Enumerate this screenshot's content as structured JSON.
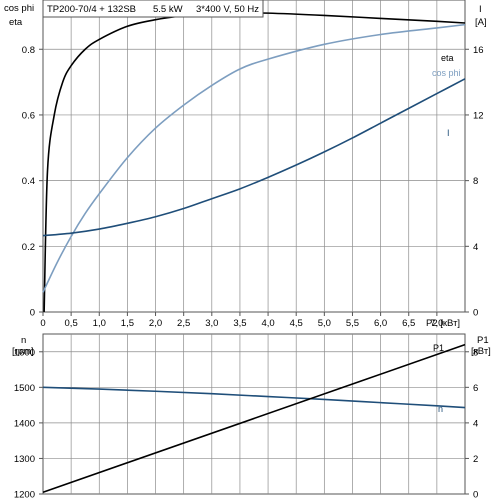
{
  "header": {
    "pump": "TP200-70/4 + 132SB",
    "power": "5.5 kW",
    "supply": "3*400 V, 50 Hz"
  },
  "top_chart": {
    "left_label_1": "cos phi",
    "left_label_2": "eta",
    "right_label_1": "I",
    "right_label_2": "[A]",
    "x_unit": "P2 [кВт]",
    "x_ticks": [
      "0",
      "0,5",
      "1,0",
      "1,5",
      "2,0",
      "2,5",
      "3,0",
      "3,5",
      "4,0",
      "4,5",
      "5,0",
      "5,5",
      "6,0",
      "6,5",
      "7,0"
    ],
    "left_ticks": [
      "0",
      "0.2",
      "0.4",
      "0.6",
      "0.8"
    ],
    "right_ticks": [
      "0",
      "4",
      "8",
      "12",
      "16"
    ],
    "series_labels": {
      "eta": "eta",
      "cosphi": "cos phi",
      "I": "I"
    }
  },
  "bottom_chart": {
    "left_label_1": "n",
    "left_label_2": "[rpm]",
    "right_label_1": "P1",
    "right_label_2": "[кВт]",
    "left_ticks": [
      "1200",
      "1300",
      "1400",
      "1500",
      "1600"
    ],
    "right_ticks": [
      "0",
      "2",
      "4",
      "6",
      "8"
    ],
    "series_labels": {
      "n": "n",
      "P1": "P1"
    }
  },
  "colors": {
    "eta": "#000000",
    "cosphi": "#7d9ec0",
    "I": "#1f4e79",
    "n": "#1f4e79",
    "P1": "#000000",
    "grid": "#8c8c8c"
  },
  "chart_data": [
    {
      "type": "line",
      "xlabel": "P2 [кВт]",
      "xlim": [
        0,
        7.5
      ],
      "ylim": [
        0,
        0.95
      ],
      "y2lim": [
        0,
        19
      ],
      "series": [
        {
          "name": "eta",
          "axis": "left",
          "x": [
            0.02,
            0.08,
            0.2,
            0.35,
            0.5,
            0.75,
            1.0,
            1.5,
            2.0,
            2.5,
            3.0,
            3.5,
            4.0,
            5.0,
            6.0,
            7.0,
            7.5
          ],
          "y": [
            0.0,
            0.43,
            0.6,
            0.7,
            0.75,
            0.8,
            0.83,
            0.87,
            0.89,
            0.902,
            0.908,
            0.91,
            0.91,
            0.903,
            0.894,
            0.885,
            0.88
          ]
        },
        {
          "name": "cos phi",
          "axis": "left",
          "x": [
            0.0,
            0.25,
            0.5,
            0.75,
            1.0,
            1.5,
            2.0,
            2.5,
            3.0,
            3.5,
            4.0,
            5.0,
            6.0,
            7.0,
            7.5
          ],
          "y": [
            0.06,
            0.15,
            0.23,
            0.3,
            0.36,
            0.47,
            0.56,
            0.63,
            0.69,
            0.74,
            0.77,
            0.815,
            0.845,
            0.865,
            0.875
          ]
        },
        {
          "name": "I",
          "axis": "right",
          "x": [
            0.0,
            0.5,
            1.0,
            1.5,
            2.0,
            2.5,
            3.0,
            3.5,
            4.0,
            4.5,
            5.0,
            5.5,
            6.0,
            6.5,
            7.0,
            7.5
          ],
          "y": [
            4.65,
            4.8,
            5.05,
            5.4,
            5.8,
            6.3,
            6.9,
            7.5,
            8.2,
            8.95,
            9.75,
            10.6,
            11.5,
            12.4,
            13.3,
            14.2
          ]
        }
      ]
    },
    {
      "type": "line",
      "xlabel": "P2 [кВт]",
      "xlim": [
        0,
        7.5
      ],
      "ylim": [
        1200,
        1650
      ],
      "y2lim": [
        0,
        9
      ],
      "series": [
        {
          "name": "n",
          "axis": "left",
          "x": [
            0.0,
            1.0,
            2.0,
            3.0,
            4.0,
            5.0,
            6.0,
            7.0,
            7.5
          ],
          "y": [
            1500,
            1495,
            1489,
            1482,
            1474,
            1466,
            1457,
            1448,
            1443
          ]
        },
        {
          "name": "P1",
          "axis": "right",
          "x": [
            0.0,
            7.5
          ],
          "y": [
            0.1,
            8.4
          ]
        }
      ]
    }
  ]
}
